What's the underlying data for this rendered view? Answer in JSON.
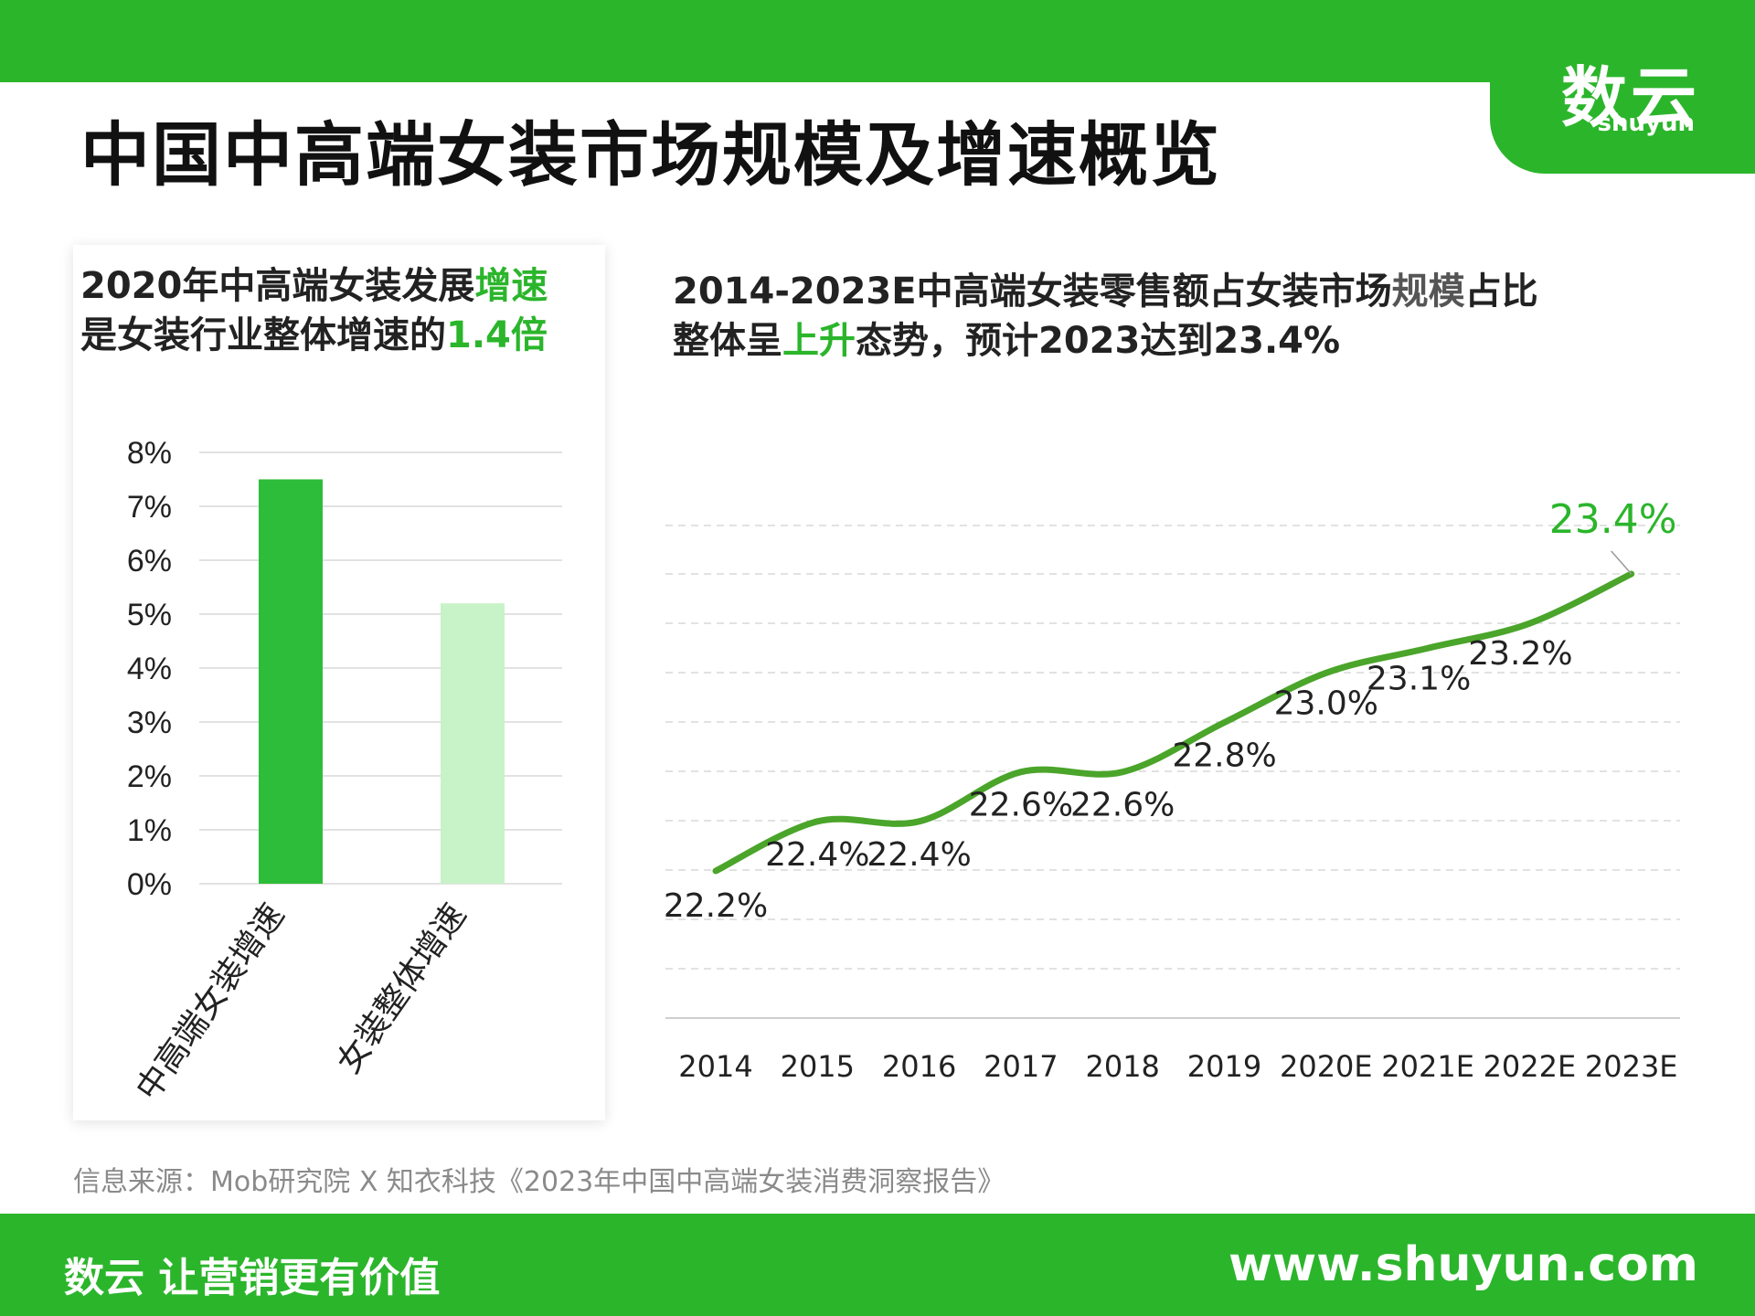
{
  "header": {
    "title": "中国中高端女装市场规模及增速概览",
    "logo_main": "数云",
    "logo_sub": "shuyun"
  },
  "left_panel": {
    "heading_line1_pre": "2020年中高端女装发展",
    "heading_line1_hl": "增速",
    "heading_line2_pre": "是女装行业整体增速的",
    "heading_line2_hl": "1.4倍"
  },
  "right_panel": {
    "heading_line1_pre": "2014-2023E中高端女装零售额占女装市场",
    "heading_line1_mid": "规模",
    "heading_line1_post": "占比",
    "heading_line2_pre": "整体呈",
    "heading_line2_hl": "上升",
    "heading_line2_post": "态势，预计2023达到23.4%"
  },
  "chart_data": [
    {
      "type": "bar",
      "categories": [
        "中高端女装增速",
        "女装整体增速"
      ],
      "values": [
        7.5,
        5.2
      ],
      "colors": [
        "#2ebd3a",
        "#c8f2c8"
      ],
      "ylim": [
        0,
        8
      ],
      "ytick_labels": [
        "0%",
        "1%",
        "2%",
        "3%",
        "4%",
        "5%",
        "6%",
        "7%",
        "8%"
      ],
      "grid": true
    },
    {
      "type": "line",
      "x": [
        "2014",
        "2015",
        "2016",
        "2017",
        "2018",
        "2019",
        "2020E",
        "2021E",
        "2022E",
        "2023E"
      ],
      "values": [
        22.2,
        22.4,
        22.4,
        22.6,
        22.6,
        22.8,
        23.0,
        23.1,
        23.2,
        23.4
      ],
      "labels": [
        "22.2%",
        "22.4%",
        "22.4%",
        "22.6%",
        "22.6%",
        "22.8%",
        "23.0%",
        "23.1%",
        "23.2%",
        "23.4%"
      ],
      "color": "#4aa52a",
      "highlight_color": "#2bb52b",
      "grid": "dashed"
    }
  ],
  "footer": {
    "source": "信息来源：Mob研究院 X 知衣科技《2023年中国中高端女装消费洞察报告》",
    "slogan": "数云 让营销更有价值",
    "website": "www.shuyun.com"
  }
}
